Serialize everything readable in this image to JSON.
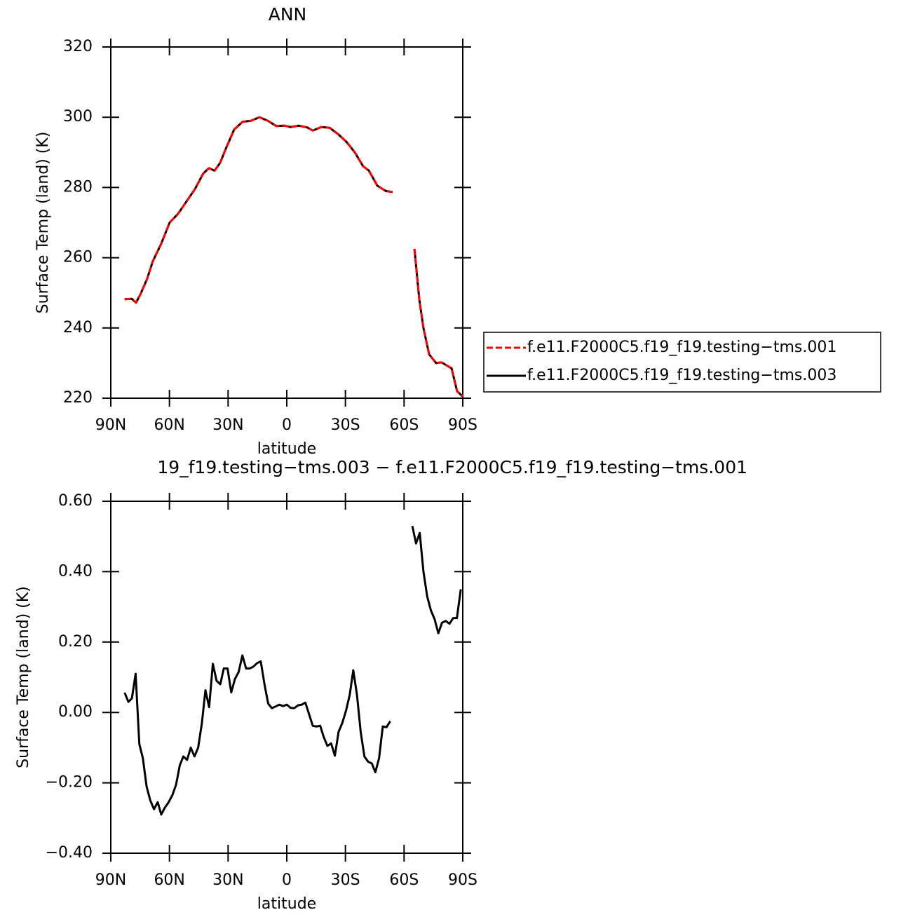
{
  "chart_data": [
    {
      "type": "line",
      "title": "ANN",
      "xlabel": "latitude",
      "ylabel": "Surface Temp (land) (K)",
      "x": [
        82.9,
        79.2,
        77.1,
        74.9,
        71.4,
        68.5,
        64.2,
        59.9,
        55.6,
        51.3,
        47,
        42.7,
        39.8,
        36.9,
        34.1,
        31.2,
        26.9,
        22.6,
        18.3,
        14,
        9.7,
        5.4,
        1.1,
        -1.8,
        -6.1,
        -10.4,
        -13.3,
        -17.6,
        -21.9,
        -26.2,
        -30.5,
        -34.8,
        -39.1,
        -42,
        -46.3,
        -50.6,
        -54.1,
        -60,
        -65.3,
        -67.8,
        -69.9,
        -72.8,
        -76.4,
        -79.2,
        -84.3,
        -87.1,
        -90
      ],
      "series": [
        {
          "name": "f.e11.F2000C5.f19_f19.testing−tms.001",
          "color": "#ff0000",
          "line_style": "dashed",
          "values": [
            248.2,
            248.3,
            247.2,
            249.5,
            254,
            259,
            264,
            270,
            272.5,
            276,
            279.5,
            284,
            285.5,
            284.8,
            287,
            291,
            296.5,
            298.7,
            299,
            300,
            299,
            297.5,
            297.6,
            297.2,
            297.6,
            297.1,
            296.2,
            297.2,
            297,
            295.2,
            293,
            290,
            286,
            284.8,
            280.5,
            279,
            278.7,
            null,
            262.5,
            248,
            240,
            232.5,
            230,
            230.2,
            228.5,
            222,
            220.5
          ]
        },
        {
          "name": "f.e11.F2000C5.f19_f19.testing−tms.003",
          "color": "#000000",
          "line_style": "solid",
          "values": [
            248.2,
            248.3,
            247.2,
            249.5,
            254,
            259,
            264,
            270,
            272.5,
            276,
            279.5,
            284,
            285.5,
            284.8,
            287,
            291,
            296.5,
            298.7,
            299,
            300,
            299,
            297.5,
            297.6,
            297.2,
            297.6,
            297.1,
            296.2,
            297.2,
            297,
            295.2,
            293,
            290,
            286,
            284.8,
            280.5,
            279,
            278.7,
            null,
            262.5,
            248,
            240,
            232.5,
            230,
            230.2,
            228.5,
            222,
            220.5
          ]
        }
      ],
      "xlim": [
        90,
        -90
      ],
      "xticks": [
        {
          "value": 90,
          "label": "90N"
        },
        {
          "value": 60,
          "label": "60N"
        },
        {
          "value": 30,
          "label": "30N"
        },
        0,
        {
          "value": -30,
          "label": "30S"
        },
        {
          "value": -60,
          "label": "60S"
        },
        {
          "value": -90,
          "label": "90S"
        }
      ],
      "ylim": [
        220,
        320
      ],
      "yticks": [
        220,
        240,
        260,
        280,
        300,
        320
      ],
      "legend": "right"
    },
    {
      "type": "line",
      "title": "19_f19.testing−tms.003 − f.e11.F2000C5.f19_f19.testing−tms.001",
      "xlabel": "latitude",
      "ylabel": "Surface Temp (land) (K)",
      "x": [
        82.9,
        81,
        79.2,
        77.3,
        75.4,
        73.6,
        71.7,
        69.8,
        67.9,
        66,
        64.2,
        62.3,
        60.4,
        58.5,
        56.6,
        54.7,
        52.9,
        51,
        49.1,
        47.2,
        45.3,
        43.4,
        41.6,
        39.7,
        37.8,
        35.9,
        34,
        32.2,
        30.3,
        28.4,
        26.5,
        24.6,
        22.7,
        20.8,
        18.9,
        17.1,
        15.2,
        13.3,
        11.4,
        9.5,
        7.6,
        5.7,
        3.8,
        1.9,
        0,
        -1.9,
        -3.8,
        -5.7,
        -7.6,
        -9.5,
        -11.4,
        -13.3,
        -15.2,
        -17.1,
        -18.9,
        -20.8,
        -22.7,
        -24.6,
        -26.5,
        -28.4,
        -30.3,
        -32.2,
        -34,
        -35.9,
        -37.8,
        -39.7,
        -41.6,
        -43.5,
        -45.3,
        -47.2,
        -49.1,
        -51,
        -52.9,
        -58,
        -64.2,
        -66.1,
        -68,
        -69.9,
        -71.8,
        -73.7,
        -75.6,
        -77.5,
        -79.4,
        -81.3,
        -83.2,
        -85.1,
        -87,
        -89
      ],
      "values": [
        0.056,
        0.03,
        0.04,
        0.11,
        -0.09,
        -0.13,
        -0.21,
        -0.25,
        -0.275,
        -0.255,
        -0.29,
        -0.27,
        -0.255,
        -0.235,
        -0.205,
        -0.15,
        -0.125,
        -0.135,
        -0.1,
        -0.125,
        -0.1,
        -0.03,
        0.063,
        0.015,
        0.138,
        0.09,
        0.08,
        0.125,
        0.125,
        0.057,
        0.095,
        0.115,
        0.162,
        0.125,
        0.125,
        0.13,
        0.14,
        0.145,
        0.08,
        0.025,
        0.012,
        0.017,
        0.022,
        0.018,
        0.022,
        0.013,
        0.012,
        0.02,
        0.022,
        0.028,
        -0.005,
        -0.038,
        -0.04,
        -0.038,
        -0.07,
        -0.095,
        -0.088,
        -0.123,
        -0.055,
        -0.03,
        0.005,
        0.05,
        0.12,
        0.05,
        -0.055,
        -0.125,
        -0.14,
        -0.145,
        -0.17,
        -0.13,
        -0.04,
        -0.042,
        -0.025,
        null,
        0.53,
        0.48,
        0.51,
        0.4,
        0.33,
        0.29,
        0.265,
        0.225,
        0.255,
        0.26,
        0.252,
        0.268,
        0.268,
        0.35
      ],
      "color": "#000000",
      "line_style": "solid",
      "xlim": [
        90,
        -90
      ],
      "xticks": [
        {
          "value": 90,
          "label": "90N"
        },
        {
          "value": 60,
          "label": "60N"
        },
        {
          "value": 30,
          "label": "30N"
        },
        0,
        {
          "value": -30,
          "label": "30S"
        },
        {
          "value": -60,
          "label": "60S"
        },
        {
          "value": -90,
          "label": "90S"
        }
      ],
      "ylim": [
        -0.4,
        0.6
      ],
      "yticks": [
        {
          "value": -0.4,
          "label": "−0.40"
        },
        {
          "value": -0.2,
          "label": "−0.20"
        },
        {
          "value": 0,
          "label": "0.00"
        },
        {
          "value": 0.2,
          "label": "0.20"
        },
        {
          "value": 0.4,
          "label": "0.40"
        },
        {
          "value": 0.6,
          "label": "0.60"
        }
      ]
    }
  ]
}
